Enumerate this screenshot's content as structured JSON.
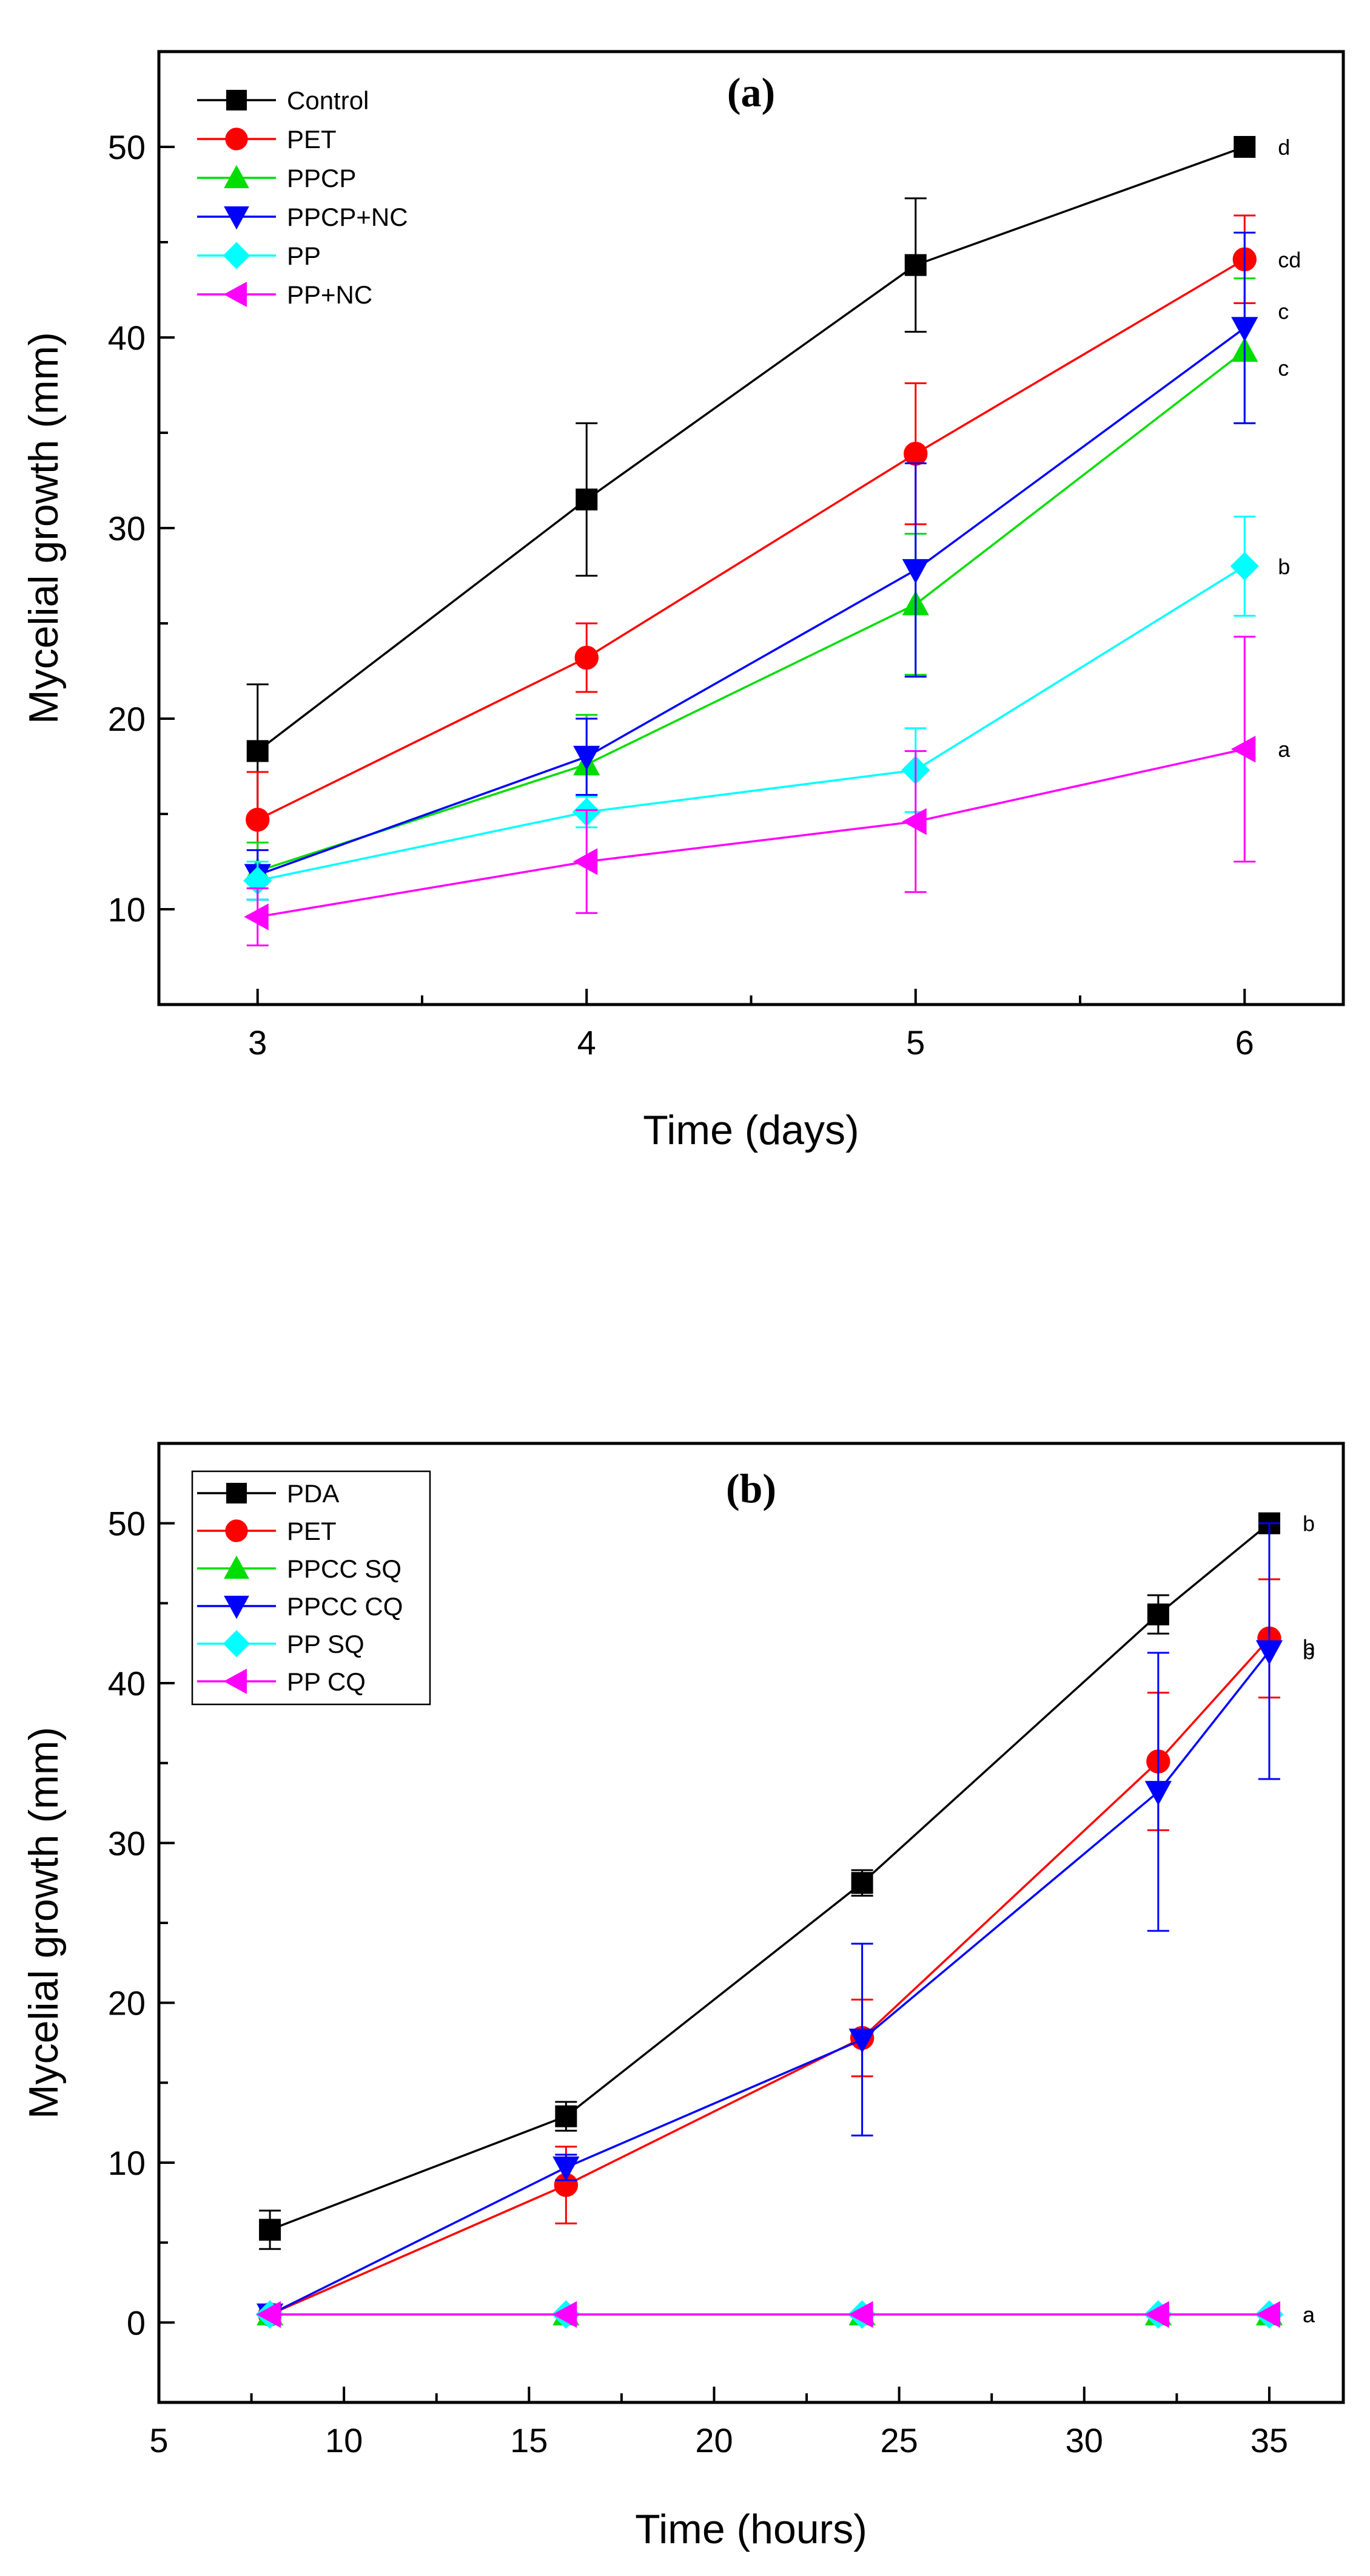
{
  "chart_data": [
    {
      "type": "line",
      "title": "(a)",
      "xlabel": "Time (days)",
      "ylabel": "Mycelial growth (mm)",
      "xlim": [
        2.7,
        6.3
      ],
      "ylim": [
        5,
        55
      ],
      "xticks": [
        3,
        4,
        5,
        6
      ],
      "yticks": [
        10,
        20,
        30,
        40,
        50
      ],
      "legend_position": "top-left",
      "x": [
        3,
        4,
        5,
        6
      ],
      "series": [
        {
          "name": "Control",
          "color": "#000000",
          "marker": "square",
          "values": [
            18.3,
            31.5,
            43.8,
            50.0
          ],
          "errors": [
            3.5,
            4.0,
            3.5,
            0.0
          ],
          "label": "d"
        },
        {
          "name": "PET",
          "color": "#ff0000",
          "marker": "circle",
          "values": [
            14.7,
            23.2,
            33.9,
            44.1
          ],
          "errors": [
            2.5,
            1.8,
            3.7,
            2.3
          ],
          "label": "cd"
        },
        {
          "name": "PPCP",
          "color": "#00dd00",
          "marker": "triangle-up",
          "values": [
            12.0,
            17.6,
            26.0,
            39.3
          ],
          "errors": [
            1.5,
            2.6,
            3.7,
            3.8
          ],
          "label": "c"
        },
        {
          "name": "PPCP+NC",
          "color": "#0000ff",
          "marker": "triangle-down",
          "values": [
            11.8,
            18.0,
            27.8,
            40.5
          ],
          "errors": [
            1.3,
            2.0,
            5.6,
            5.0
          ],
          "label": "c"
        },
        {
          "name": "PP",
          "color": "#00ffff",
          "marker": "diamond",
          "values": [
            11.5,
            15.1,
            17.3,
            28.0
          ],
          "errors": [
            1.0,
            0.8,
            2.2,
            2.6
          ],
          "label": "b"
        },
        {
          "name": "PP+NC",
          "color": "#ff00ff",
          "marker": "triangle-left",
          "values": [
            9.6,
            12.5,
            14.6,
            18.4
          ],
          "errors": [
            1.5,
            2.7,
            3.7,
            5.9
          ],
          "label": "a"
        }
      ]
    },
    {
      "type": "line",
      "title": "(b)",
      "xlabel": "Time (hours)",
      "ylabel": "Mycelial growth (mm)",
      "xlim": [
        5,
        37
      ],
      "ylim": [
        -5,
        55
      ],
      "xticks": [
        5,
        10,
        15,
        20,
        25,
        30,
        35
      ],
      "yticks": [
        0,
        10,
        20,
        30,
        40,
        50
      ],
      "legend_position": "top-left",
      "x": [
        8,
        16,
        24,
        32,
        35
      ],
      "series": [
        {
          "name": "PDA",
          "color": "#000000",
          "marker": "square",
          "values": [
            5.8,
            12.9,
            27.5,
            44.3,
            50.0
          ],
          "errors": [
            1.2,
            0.9,
            0.8,
            1.2,
            0.0
          ],
          "label": "b"
        },
        {
          "name": "PET",
          "color": "#ff0000",
          "marker": "circle",
          "values": [
            0.5,
            8.6,
            17.8,
            35.1,
            42.8
          ],
          "errors": [
            0.0,
            2.4,
            2.4,
            4.3,
            3.7
          ],
          "label": "b"
        },
        {
          "name": "PPCC SQ",
          "color": "#00dd00",
          "marker": "triangle-up",
          "values": [
            0.5,
            0.5,
            0.5,
            0.5,
            0.5
          ],
          "errors": [
            0,
            0,
            0,
            0,
            0
          ],
          "label": "a"
        },
        {
          "name": "PPCC CQ",
          "color": "#0000ff",
          "marker": "triangle-down",
          "values": [
            0.5,
            9.7,
            17.7,
            33.2,
            42.0
          ],
          "errors": [
            0.0,
            0.8,
            6.0,
            8.7,
            8.0
          ],
          "label": "b"
        },
        {
          "name": "PP SQ",
          "color": "#00ffff",
          "marker": "diamond",
          "values": [
            0.5,
            0.5,
            0.5,
            0.5,
            0.5
          ],
          "errors": [
            0,
            0,
            0,
            0,
            0
          ],
          "label": ""
        },
        {
          "name": "PP CQ",
          "color": "#ff00ff",
          "marker": "triangle-left",
          "values": [
            0.5,
            0.5,
            0.5,
            0.5,
            0.5
          ],
          "errors": [
            0,
            0,
            0,
            0,
            0
          ],
          "label": "a"
        }
      ]
    }
  ]
}
